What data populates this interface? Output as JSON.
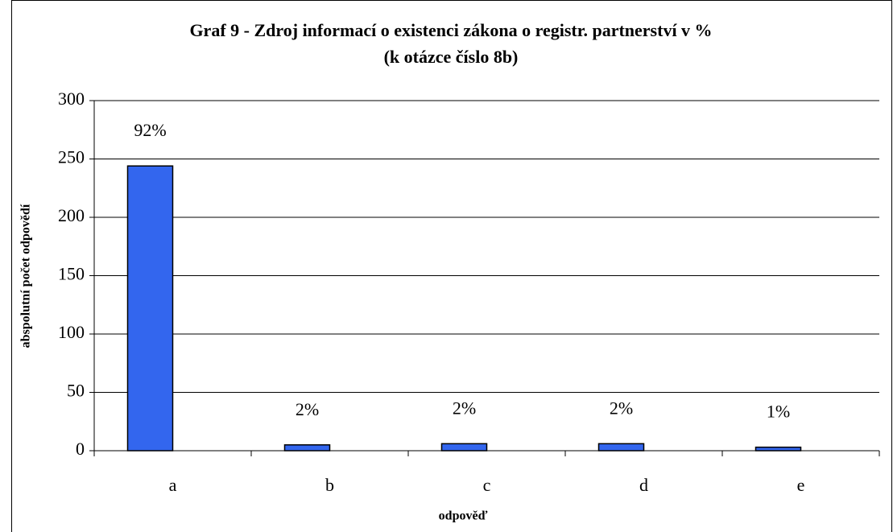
{
  "chart_data": {
    "type": "bar",
    "title": "Graf  9 - Zdroj informací o existenci zákona o registr. partnerství v %",
    "subtitle": "(k otázce číslo 8b)",
    "x_label": "odpověď",
    "y_label": "abspolutní počet odpovědí",
    "categories": [
      "a",
      "b",
      "c",
      "d",
      "e"
    ],
    "values": [
      244,
      5,
      6,
      6,
      3
    ],
    "data_labels": [
      "92%",
      "2%",
      "2%",
      "2%",
      "1%"
    ],
    "color": "#3366ee",
    "ylim": [
      0,
      300
    ],
    "yticks": [
      0,
      50,
      100,
      150,
      200,
      250,
      300
    ],
    "grid": true
  }
}
